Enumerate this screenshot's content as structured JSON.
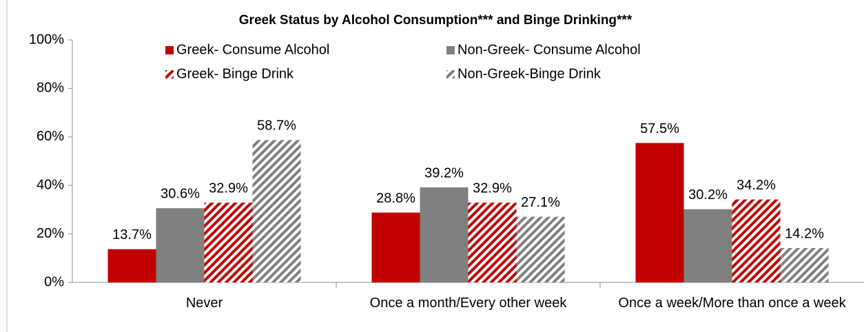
{
  "chart_data": {
    "type": "bar",
    "title": "Greek Status by Alcohol Consumption*** and Binge Drinking***",
    "categories": [
      "Never",
      "Once a month/Every other week",
      "Once a week/More than once a week"
    ],
    "series": [
      {
        "name": "Greek- Consume Alcohol",
        "color": "#c00000",
        "pattern": "solid",
        "values": [
          13.7,
          28.8,
          57.5
        ],
        "value_labels": [
          "13.7%",
          "28.8%",
          "57.5%"
        ]
      },
      {
        "name": "Non-Greek- Consume Alcohol",
        "color": "#808080",
        "pattern": "solid",
        "values": [
          30.6,
          39.2,
          30.2
        ],
        "value_labels": [
          "30.6%",
          "39.2%",
          "30.2%"
        ]
      },
      {
        "name": "Greek- Binge Drink",
        "color": "#c00000",
        "pattern": "hatch",
        "values": [
          32.9,
          32.9,
          34.2
        ],
        "value_labels": [
          "32.9%",
          "32.9%",
          "34.2%"
        ]
      },
      {
        "name": "Non-Greek-Binge Drink",
        "color": "#808080",
        "pattern": "hatch",
        "values": [
          58.7,
          27.1,
          14.2
        ],
        "value_labels": [
          "58.7%",
          "27.1%",
          "14.2%"
        ]
      }
    ],
    "ylim": [
      0,
      100
    ],
    "yticks": [
      {
        "value": 0,
        "label": "0%"
      },
      {
        "value": 20,
        "label": "20%"
      },
      {
        "value": 40,
        "label": "40%"
      },
      {
        "value": 60,
        "label": "60%"
      },
      {
        "value": 80,
        "label": "80%"
      },
      {
        "value": 100,
        "label": "100%"
      }
    ],
    "grid": false,
    "legend": "top"
  }
}
